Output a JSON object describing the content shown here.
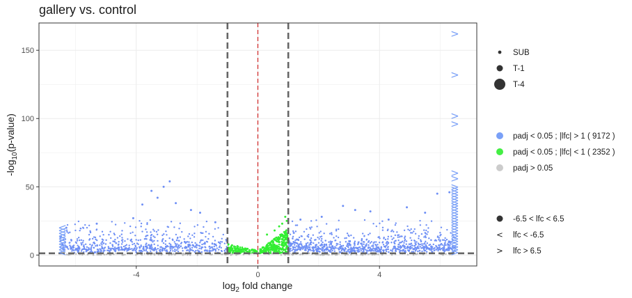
{
  "title": "gallery vs. control",
  "chart_data": {
    "type": "scatter",
    "title": "gallery vs. control",
    "xlabel": "log2 fold change",
    "ylabel": "-log10(p-value)",
    "xlim": [
      -7.2,
      7.2
    ],
    "ylim": [
      -8,
      170
    ],
    "x_ticks": [
      -4,
      0,
      4
    ],
    "x_tick_labels": [
      "-4",
      "0",
      "4"
    ],
    "y_ticks": [
      0,
      50,
      100,
      150
    ],
    "y_tick_labels": [
      "0",
      "50",
      "100",
      "150"
    ],
    "grid": true,
    "vlines": [
      {
        "x": -1,
        "style": "dashed",
        "color": "#666666"
      },
      {
        "x": 1,
        "style": "dashed",
        "color": "#666666"
      },
      {
        "x": 0,
        "style": "dashed",
        "color": "#cc2222"
      }
    ],
    "hlines": [
      {
        "y": 1.3,
        "style": "dashed",
        "color": "#666666"
      }
    ],
    "clip_x": 6.5,
    "series": [
      {
        "name": "padj < 0.05 ; |lfc| > 1  ( 9172 )",
        "color": "#6e8ff5",
        "count": 9172,
        "highlight_points": [
          {
            "x": -3.1,
            "y": 50
          },
          {
            "x": -2.9,
            "y": 54
          },
          {
            "x": -3.5,
            "y": 47
          },
          {
            "x": -3.3,
            "y": 42
          },
          {
            "x": -3.8,
            "y": 37
          },
          {
            "x": -2.7,
            "y": 38
          },
          {
            "x": -1.9,
            "y": 31
          },
          {
            "x": -2.2,
            "y": 33
          },
          {
            "x": -4.1,
            "y": 27
          },
          {
            "x": -5.3,
            "y": 23
          },
          {
            "x": 2.1,
            "y": 28
          },
          {
            "x": 2.8,
            "y": 36
          },
          {
            "x": 3.2,
            "y": 33
          },
          {
            "x": 3.7,
            "y": 32
          },
          {
            "x": 4.9,
            "y": 35
          },
          {
            "x": 5.5,
            "y": 31
          },
          {
            "x": 5.9,
            "y": 45
          },
          {
            "x": 6.3,
            "y": 46
          },
          {
            "x": 1.4,
            "y": 26
          },
          {
            "x": 4.3,
            "y": 26
          },
          {
            "x": -1.4,
            "y": 24
          },
          {
            "x": -6.3,
            "y": 20
          }
        ],
        "clipped_left": [
          {
            "x": -6.5,
            "y": 20
          },
          {
            "x": -6.5,
            "y": 18
          },
          {
            "x": -6.5,
            "y": 16
          },
          {
            "x": -6.5,
            "y": 14
          },
          {
            "x": -6.5,
            "y": 12
          },
          {
            "x": -6.5,
            "y": 10
          },
          {
            "x": -6.5,
            "y": 8
          },
          {
            "x": -6.5,
            "y": 6
          },
          {
            "x": -6.5,
            "y": 4
          },
          {
            "x": -6.5,
            "y": 2
          }
        ],
        "clipped_right": [
          {
            "x": 6.5,
            "y": 162
          },
          {
            "x": 6.5,
            "y": 132
          },
          {
            "x": 6.5,
            "y": 102
          },
          {
            "x": 6.5,
            "y": 96
          },
          {
            "x": 6.5,
            "y": 60
          },
          {
            "x": 6.5,
            "y": 56
          },
          {
            "x": 6.5,
            "y": 50
          },
          {
            "x": 6.5,
            "y": 48
          },
          {
            "x": 6.5,
            "y": 46
          },
          {
            "x": 6.5,
            "y": 44
          },
          {
            "x": 6.5,
            "y": 42
          },
          {
            "x": 6.5,
            "y": 40
          },
          {
            "x": 6.5,
            "y": 38
          },
          {
            "x": 6.5,
            "y": 36
          },
          {
            "x": 6.5,
            "y": 34
          },
          {
            "x": 6.5,
            "y": 32
          },
          {
            "x": 6.5,
            "y": 30
          },
          {
            "x": 6.5,
            "y": 28
          },
          {
            "x": 6.5,
            "y": 26
          },
          {
            "x": 6.5,
            "y": 24
          },
          {
            "x": 6.5,
            "y": 22
          },
          {
            "x": 6.5,
            "y": 20
          },
          {
            "x": 6.5,
            "y": 18
          },
          {
            "x": 6.5,
            "y": 16
          },
          {
            "x": 6.5,
            "y": 14
          },
          {
            "x": 6.5,
            "y": 12
          },
          {
            "x": 6.5,
            "y": 10
          },
          {
            "x": 6.5,
            "y": 8
          },
          {
            "x": 6.5,
            "y": 6
          },
          {
            "x": 6.5,
            "y": 4
          },
          {
            "x": 6.5,
            "y": 2
          }
        ]
      },
      {
        "name": "padj < 0.05 ; |lfc| < 1  ( 2352 )",
        "color": "#33ee33",
        "count": 2352,
        "highlight_points": [
          {
            "x": 0.9,
            "y": 28
          },
          {
            "x": 0.95,
            "y": 25
          },
          {
            "x": 0.8,
            "y": 23
          },
          {
            "x": 0.7,
            "y": 21
          },
          {
            "x": 0.55,
            "y": 18
          },
          {
            "x": 0.3,
            "y": 15
          }
        ]
      },
      {
        "name": "padj > 0.05",
        "color": "#bebebe"
      }
    ],
    "legend": {
      "position": "right",
      "size_title": "",
      "size_entries": [
        {
          "label": "SUB",
          "size": "small"
        },
        {
          "label": "T-1",
          "size": "medium"
        },
        {
          "label": "T-4",
          "size": "large"
        }
      ],
      "color_entries": [
        {
          "label": "padj < 0.05 ; |lfc| > 1  ( 9172 )",
          "color": "#7aa0f7"
        },
        {
          "label": "padj < 0.05 ; |lfc| < 1  ( 2352 )",
          "color": "#44ee44"
        },
        {
          "label": "padj > 0.05",
          "color": "#cccccc"
        }
      ],
      "shape_entries": [
        {
          "label": "-6.5 < lfc < 6.5",
          "glyph": "●"
        },
        {
          "label": "lfc <  -6.5",
          "glyph": "<"
        },
        {
          "label": "lfc >  6.5",
          "glyph": ">"
        }
      ]
    }
  }
}
